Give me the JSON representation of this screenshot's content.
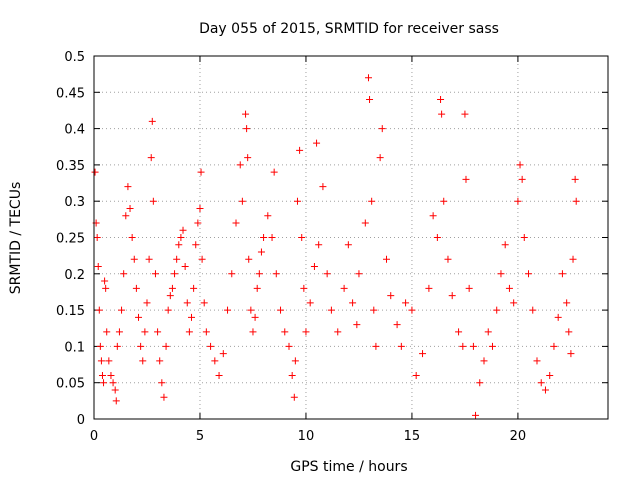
{
  "chart_data": {
    "type": "scatter",
    "title": "Day 055 of 2015, SRMTID for receiver sass",
    "xlabel": "GPS time / hours",
    "ylabel": "SRMTID / TECUs",
    "xlim": [
      0,
      24.25
    ],
    "ylim": [
      0,
      0.5
    ],
    "xticks": [
      0,
      5,
      10,
      15,
      20
    ],
    "xtick_labels": [
      "0",
      "5",
      "10",
      "15",
      "20"
    ],
    "yticks": [
      0,
      0.05,
      0.1,
      0.15,
      0.2,
      0.25,
      0.3,
      0.35,
      0.4,
      0.45,
      0.5
    ],
    "ytick_labels": [
      "0",
      "0.05",
      "0.1",
      "0.15",
      "0.2",
      "0.25",
      "0.3",
      "0.35",
      "0.4",
      "0.45",
      "0.5"
    ],
    "grid": true,
    "marker": "+",
    "color": "#ff0000",
    "series": [
      {
        "name": "SRMTID",
        "points": [
          [
            0.05,
            0.34
          ],
          [
            0.1,
            0.27
          ],
          [
            0.15,
            0.25
          ],
          [
            0.2,
            0.21
          ],
          [
            0.25,
            0.15
          ],
          [
            0.3,
            0.1
          ],
          [
            0.35,
            0.08
          ],
          [
            0.4,
            0.06
          ],
          [
            0.45,
            0.05
          ],
          [
            0.5,
            0.19
          ],
          [
            0.55,
            0.18
          ],
          [
            0.6,
            0.12
          ],
          [
            0.7,
            0.08
          ],
          [
            0.8,
            0.06
          ],
          [
            0.9,
            0.05
          ],
          [
            1.0,
            0.04
          ],
          [
            1.05,
            0.025
          ],
          [
            1.1,
            0.1
          ],
          [
            1.2,
            0.12
          ],
          [
            1.3,
            0.15
          ],
          [
            1.4,
            0.2
          ],
          [
            1.5,
            0.28
          ],
          [
            1.6,
            0.32
          ],
          [
            1.7,
            0.29
          ],
          [
            1.8,
            0.25
          ],
          [
            1.9,
            0.22
          ],
          [
            2.0,
            0.18
          ],
          [
            2.1,
            0.14
          ],
          [
            2.2,
            0.1
          ],
          [
            2.3,
            0.08
          ],
          [
            2.4,
            0.12
          ],
          [
            2.5,
            0.16
          ],
          [
            2.6,
            0.22
          ],
          [
            2.7,
            0.36
          ],
          [
            2.75,
            0.41
          ],
          [
            2.8,
            0.3
          ],
          [
            2.9,
            0.2
          ],
          [
            3.0,
            0.12
          ],
          [
            3.1,
            0.08
          ],
          [
            3.2,
            0.05
          ],
          [
            3.3,
            0.03
          ],
          [
            3.4,
            0.1
          ],
          [
            3.5,
            0.15
          ],
          [
            3.6,
            0.17
          ],
          [
            3.7,
            0.18
          ],
          [
            3.8,
            0.2
          ],
          [
            3.9,
            0.22
          ],
          [
            4.0,
            0.24
          ],
          [
            4.1,
            0.25
          ],
          [
            4.2,
            0.26
          ],
          [
            4.3,
            0.21
          ],
          [
            4.4,
            0.16
          ],
          [
            4.5,
            0.12
          ],
          [
            4.6,
            0.14
          ],
          [
            4.7,
            0.18
          ],
          [
            4.8,
            0.24
          ],
          [
            4.9,
            0.27
          ],
          [
            5.0,
            0.29
          ],
          [
            5.05,
            0.34
          ],
          [
            5.1,
            0.22
          ],
          [
            5.2,
            0.16
          ],
          [
            5.3,
            0.12
          ],
          [
            5.5,
            0.1
          ],
          [
            5.7,
            0.08
          ],
          [
            5.9,
            0.06
          ],
          [
            6.1,
            0.09
          ],
          [
            6.3,
            0.15
          ],
          [
            6.5,
            0.2
          ],
          [
            6.7,
            0.27
          ],
          [
            6.9,
            0.35
          ],
          [
            7.0,
            0.3
          ],
          [
            7.15,
            0.42
          ],
          [
            7.2,
            0.4
          ],
          [
            7.25,
            0.36
          ],
          [
            7.3,
            0.22
          ],
          [
            7.4,
            0.15
          ],
          [
            7.5,
            0.12
          ],
          [
            7.6,
            0.14
          ],
          [
            7.7,
            0.18
          ],
          [
            7.8,
            0.2
          ],
          [
            7.9,
            0.23
          ],
          [
            8.0,
            0.25
          ],
          [
            8.2,
            0.28
          ],
          [
            8.4,
            0.25
          ],
          [
            8.5,
            0.34
          ],
          [
            8.6,
            0.2
          ],
          [
            8.8,
            0.15
          ],
          [
            9.0,
            0.12
          ],
          [
            9.2,
            0.1
          ],
          [
            9.35,
            0.06
          ],
          [
            9.45,
            0.03
          ],
          [
            9.5,
            0.08
          ],
          [
            9.6,
            0.3
          ],
          [
            9.7,
            0.37
          ],
          [
            9.8,
            0.25
          ],
          [
            9.9,
            0.18
          ],
          [
            10.0,
            0.12
          ],
          [
            10.2,
            0.16
          ],
          [
            10.4,
            0.21
          ],
          [
            10.5,
            0.38
          ],
          [
            10.6,
            0.24
          ],
          [
            10.8,
            0.32
          ],
          [
            11.0,
            0.2
          ],
          [
            11.2,
            0.15
          ],
          [
            11.5,
            0.12
          ],
          [
            11.8,
            0.18
          ],
          [
            12.0,
            0.24
          ],
          [
            12.2,
            0.16
          ],
          [
            12.4,
            0.13
          ],
          [
            12.5,
            0.2
          ],
          [
            12.8,
            0.27
          ],
          [
            12.95,
            0.47
          ],
          [
            13.0,
            0.44
          ],
          [
            13.1,
            0.3
          ],
          [
            13.2,
            0.15
          ],
          [
            13.3,
            0.1
          ],
          [
            13.5,
            0.36
          ],
          [
            13.6,
            0.4
          ],
          [
            13.8,
            0.22
          ],
          [
            14.0,
            0.17
          ],
          [
            14.3,
            0.13
          ],
          [
            14.5,
            0.1
          ],
          [
            14.7,
            0.16
          ],
          [
            15.0,
            0.15
          ],
          [
            15.2,
            0.06
          ],
          [
            15.5,
            0.09
          ],
          [
            15.8,
            0.18
          ],
          [
            16.0,
            0.28
          ],
          [
            16.2,
            0.25
          ],
          [
            16.35,
            0.44
          ],
          [
            16.4,
            0.42
          ],
          [
            16.5,
            0.3
          ],
          [
            16.7,
            0.22
          ],
          [
            16.9,
            0.17
          ],
          [
            17.2,
            0.12
          ],
          [
            17.4,
            0.1
          ],
          [
            17.5,
            0.42
          ],
          [
            17.55,
            0.33
          ],
          [
            17.7,
            0.18
          ],
          [
            17.9,
            0.1
          ],
          [
            18.0,
            0.005
          ],
          [
            18.2,
            0.05
          ],
          [
            18.4,
            0.08
          ],
          [
            18.6,
            0.12
          ],
          [
            18.8,
            0.1
          ],
          [
            19.0,
            0.15
          ],
          [
            19.2,
            0.2
          ],
          [
            19.4,
            0.24
          ],
          [
            19.6,
            0.18
          ],
          [
            19.8,
            0.16
          ],
          [
            20.0,
            0.3
          ],
          [
            20.1,
            0.35
          ],
          [
            20.2,
            0.33
          ],
          [
            20.3,
            0.25
          ],
          [
            20.5,
            0.2
          ],
          [
            20.7,
            0.15
          ],
          [
            20.9,
            0.08
          ],
          [
            21.1,
            0.05
          ],
          [
            21.3,
            0.04
          ],
          [
            21.5,
            0.06
          ],
          [
            21.7,
            0.1
          ],
          [
            21.9,
            0.14
          ],
          [
            22.1,
            0.2
          ],
          [
            22.3,
            0.16
          ],
          [
            22.4,
            0.12
          ],
          [
            22.5,
            0.09
          ],
          [
            22.6,
            0.22
          ],
          [
            22.7,
            0.33
          ],
          [
            22.75,
            0.3
          ]
        ]
      }
    ]
  }
}
